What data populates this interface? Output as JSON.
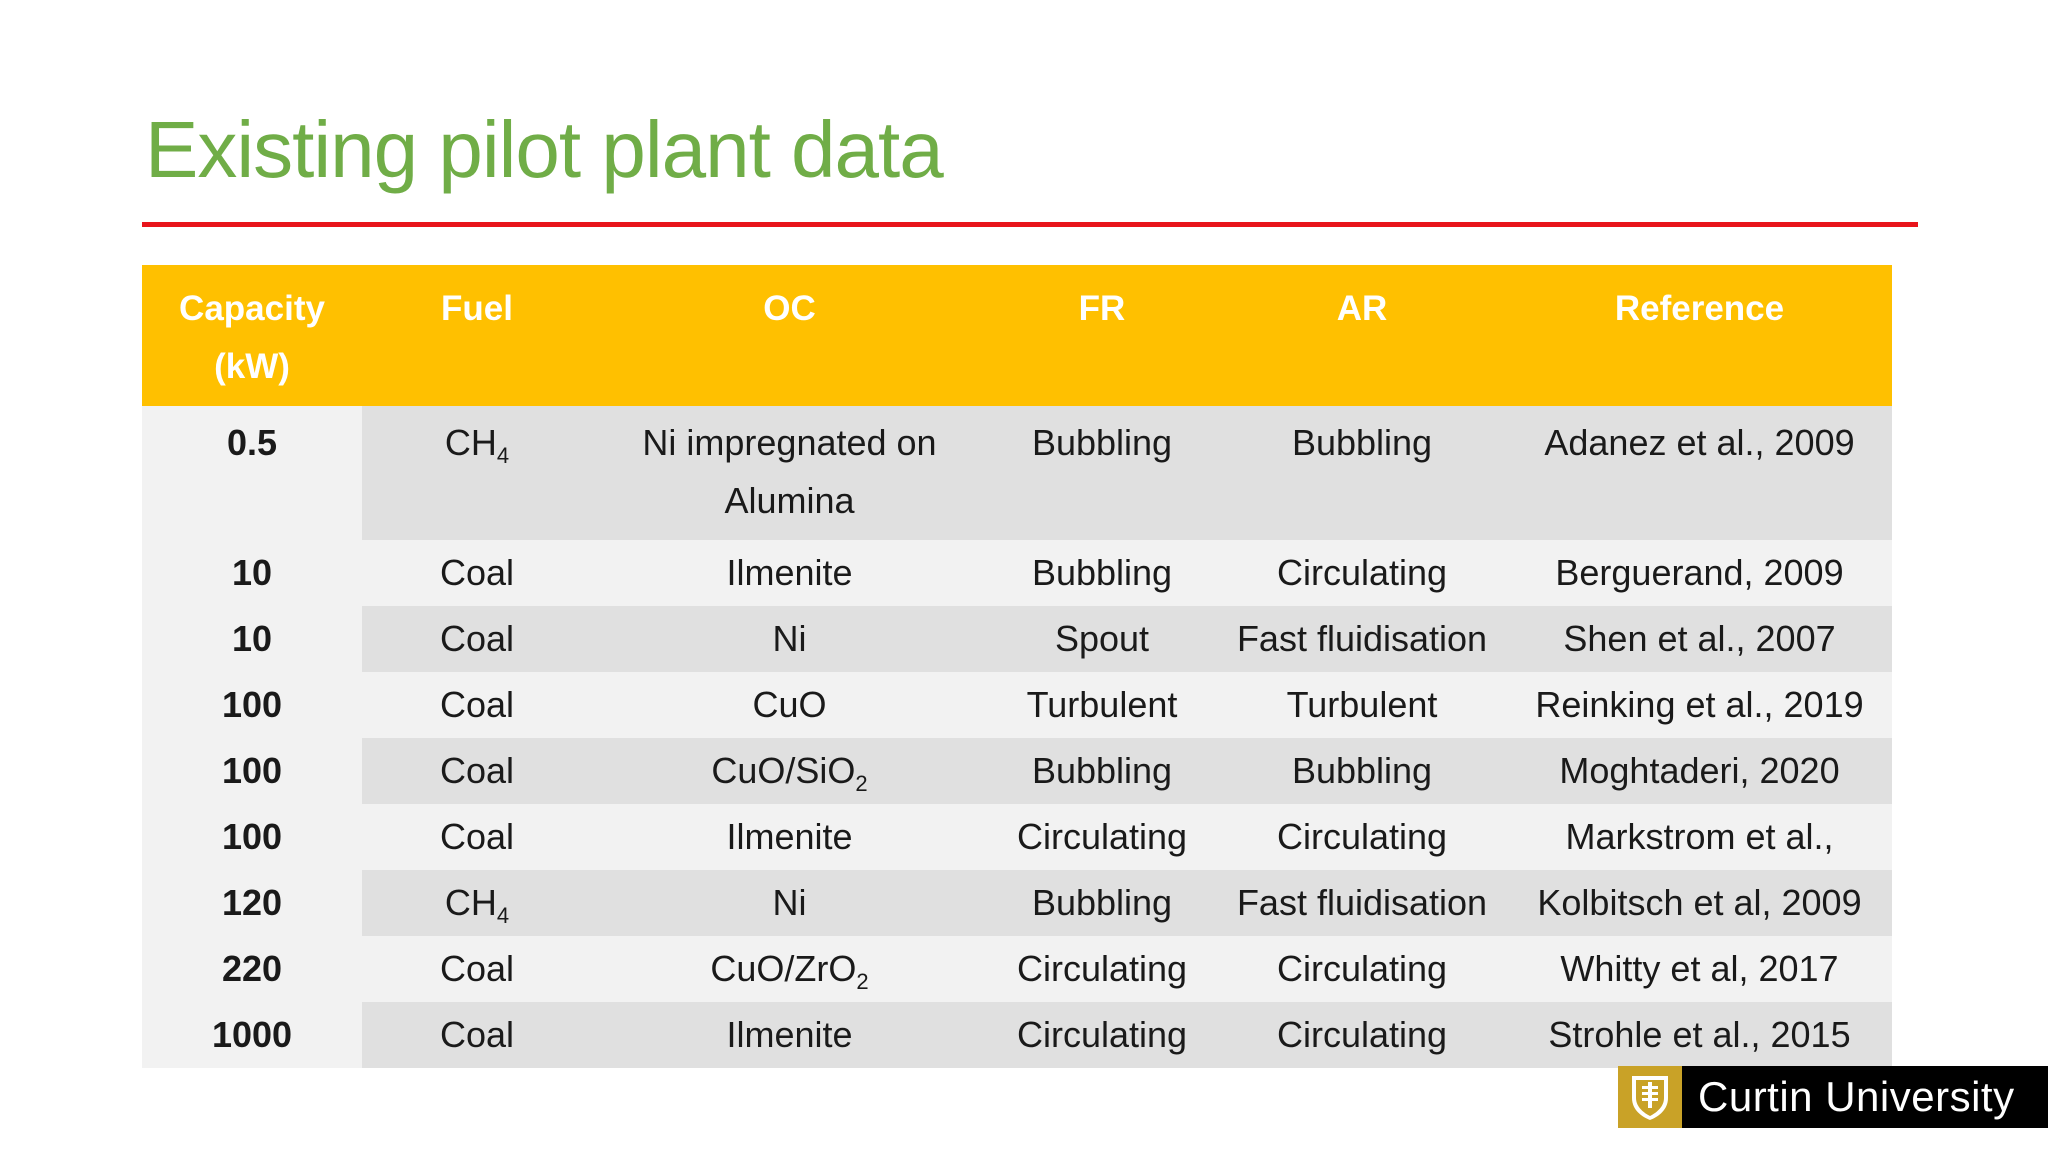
{
  "title": "Existing pilot plant data",
  "colors": {
    "title": "#70ad47",
    "rule": "#e8141b",
    "header_bg": "#ffc000"
  },
  "table": {
    "headers": {
      "capacity_line1": "Capacity",
      "capacity_line2": "(kW)",
      "fuel": "Fuel",
      "oc": "OC",
      "fr": "FR",
      "ar": "AR",
      "reference": "Reference"
    },
    "rows": [
      {
        "capacity": "0.5",
        "fuel": "CH",
        "fuel_sub": "4",
        "oc": "Ni impregnated on",
        "oc_line2": "Alumina",
        "fr": "Bubbling",
        "ar": "Bubbling",
        "reference": "Adanez et al., 2009"
      },
      {
        "capacity": "10",
        "fuel": "Coal",
        "oc": "Ilmenite",
        "fr": "Bubbling",
        "ar": "Circulating",
        "reference": "Berguerand, 2009"
      },
      {
        "capacity": "10",
        "fuel": "Coal",
        "oc": "Ni",
        "fr": "Spout",
        "ar": "Fast fluidisation",
        "reference": "Shen et al., 2007"
      },
      {
        "capacity": "100",
        "fuel": "Coal",
        "oc": "CuO",
        "fr": "Turbulent",
        "ar": "Turbulent",
        "reference": "Reinking et al., 2019"
      },
      {
        "capacity": "100",
        "fuel": "Coal",
        "oc": "CuO/SiO",
        "oc_sub": "2",
        "fr": "Bubbling",
        "ar": "Bubbling",
        "reference": "Moghtaderi, 2020"
      },
      {
        "capacity": "100",
        "fuel": "Coal",
        "oc": "Ilmenite",
        "fr": "Circulating",
        "ar": "Circulating",
        "reference": "Markstrom et al.,"
      },
      {
        "capacity": "120",
        "fuel": "CH",
        "fuel_sub": "4",
        "oc": "Ni",
        "fr": "Bubbling",
        "ar": "Fast fluidisation",
        "reference": "Kolbitsch et al, 2009"
      },
      {
        "capacity": "220",
        "fuel": "Coal",
        "oc": "CuO/ZrO",
        "oc_sub": "2",
        "fr": "Circulating",
        "ar": "Circulating",
        "reference": "Whitty et al, 2017"
      },
      {
        "capacity": "1000",
        "fuel": "Coal",
        "oc": "Ilmenite",
        "fr": "Circulating",
        "ar": "Circulating",
        "reference": "Strohle et al., 2015"
      }
    ]
  },
  "logo": {
    "text": "Curtin University",
    "icon": "curtin-crest-icon"
  }
}
